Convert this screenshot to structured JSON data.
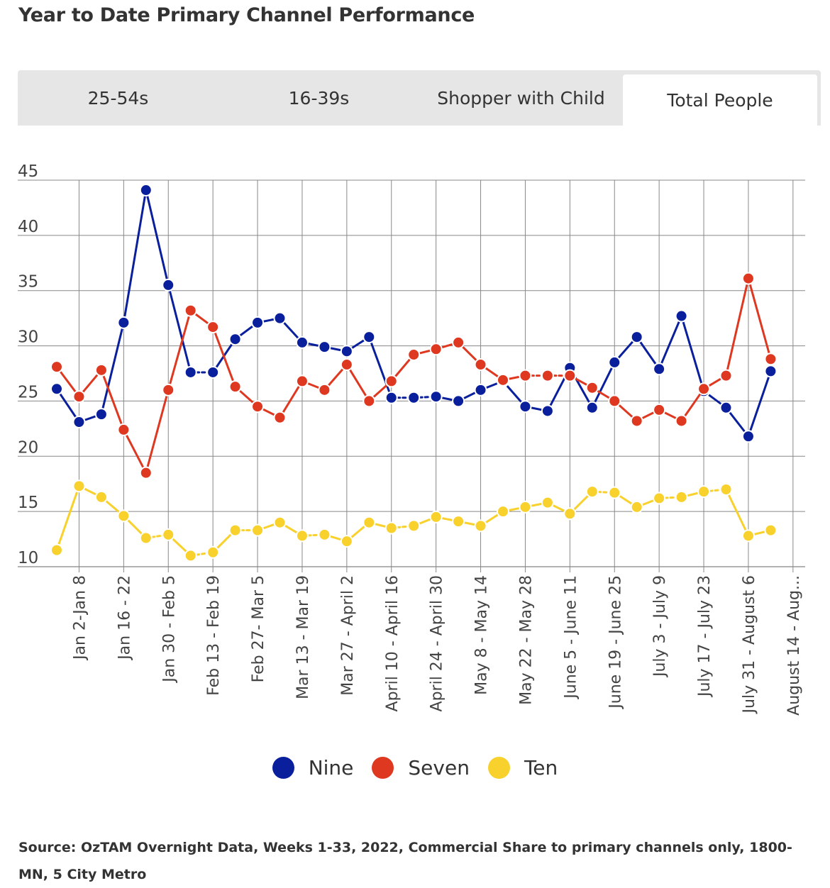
{
  "title": "Year to Date Primary Channel Performance",
  "tabs": [
    {
      "label": "25-54s",
      "active": false
    },
    {
      "label": "16-39s",
      "active": false
    },
    {
      "label": "Shopper with Child",
      "active": false
    },
    {
      "label": "Total People",
      "active": true
    }
  ],
  "source": "Source: OzTAM Overnight Data, Weeks 1-33, 2022, Commercial Share to primary channels only, 1800-MN, 5 City Metro",
  "chart_data": {
    "type": "line",
    "ylim": [
      10,
      45
    ],
    "yticks": [
      10,
      15,
      20,
      25,
      30,
      35,
      40,
      45
    ],
    "grid": true,
    "legend_position": "bottom",
    "x_tick_labels": [
      "Jan 2-Jan 8",
      "Jan 16 - 22",
      "Jan 30 - Feb 5",
      "Feb 13 - Feb 19",
      "Feb 27- Mar 5",
      "Mar 13 - Mar 19",
      "Mar 27 - April 2",
      "April 10 - April 16",
      "April 24 - April 30",
      "May 8 - May 14",
      "May 22 - May 28",
      "June 5 - June 11",
      "June 19 - June 25",
      "July 3 - July 9",
      "July 17 - July 23",
      "July 31 - August 6",
      "August 14 - Aug..."
    ],
    "series": [
      {
        "name": "Nine",
        "color": "#0a1f9c",
        "values": [
          26.1,
          23.1,
          23.8,
          32.1,
          44.1,
          35.5,
          27.6,
          27.6,
          30.6,
          32.1,
          32.5,
          30.3,
          29.9,
          29.5,
          30.8,
          25.3,
          25.3,
          25.4,
          25.0,
          26.0,
          26.8,
          24.5,
          24.1,
          28.0,
          24.4,
          28.5,
          30.8,
          27.9,
          32.7,
          25.9,
          24.4,
          21.8,
          27.7
        ]
      },
      {
        "name": "Seven",
        "color": "#de3821",
        "values": [
          28.1,
          25.4,
          27.8,
          22.4,
          18.5,
          26.0,
          33.2,
          31.7,
          26.3,
          24.5,
          23.5,
          26.8,
          26.0,
          28.3,
          25.0,
          26.8,
          29.2,
          29.7,
          30.3,
          28.3,
          26.9,
          27.3,
          27.3,
          27.3,
          26.2,
          25.0,
          23.2,
          24.2,
          23.2,
          26.1,
          27.3,
          36.1,
          28.8
        ]
      },
      {
        "name": "Ten",
        "color": "#f8d12c",
        "values": [
          11.5,
          17.3,
          16.3,
          14.6,
          12.6,
          12.9,
          11.0,
          11.3,
          13.3,
          13.3,
          14.0,
          12.8,
          12.9,
          12.3,
          14.0,
          13.5,
          13.7,
          14.5,
          14.1,
          13.7,
          15.0,
          15.4,
          15.8,
          14.8,
          16.8,
          16.7,
          15.4,
          16.2,
          16.3,
          16.8,
          17.0,
          12.8,
          13.3
        ]
      }
    ]
  }
}
